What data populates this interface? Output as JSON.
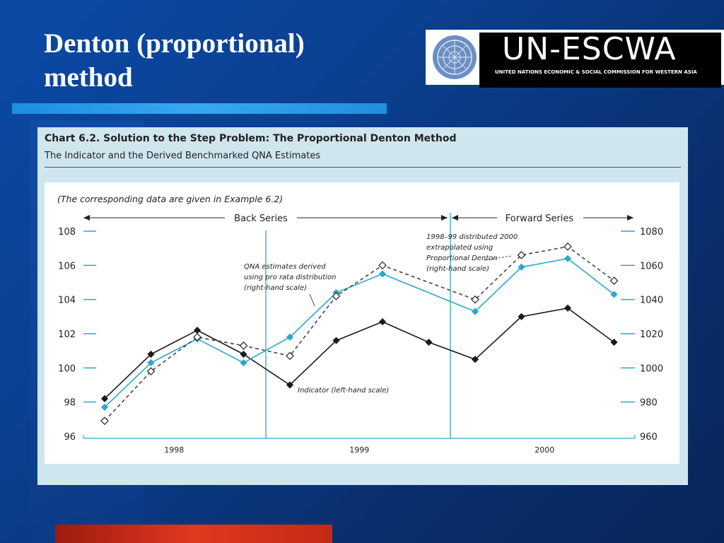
{
  "slide": {
    "title_line1": "Denton (proportional)",
    "title_line2": "method"
  },
  "logo": {
    "name": "UN-ESCWA",
    "subtitle": "UNITED NATIONS ECONOMIC & SOCIAL COMMISSION FOR WESTERN ASIA"
  },
  "colors": {
    "background": "#0b3f8f",
    "title_bar": "#2b9be6",
    "bottom_bar": "#d0321a",
    "panel": "#cfe6ef",
    "series_indicator": "#1a1a1a",
    "series_prorata": "#2aa8cc",
    "series_denton": "#444444"
  },
  "chart_data": {
    "type": "line",
    "title": "Chart 6.2.  Solution to the Step Problem: The Proportional Denton Method",
    "subtitle": "The Indicator and the Derived Benchmarked QNA Estimates",
    "note": "(The corresponding data are given in Example 6.2)",
    "back_series_label": "Back Series",
    "forward_series_label": "Forward Series",
    "years": [
      "1998",
      "1999",
      "2000"
    ],
    "quarters_per_year": 4,
    "left_axis": {
      "ticks": [
        "108",
        "106",
        "104",
        "102",
        "100",
        "98",
        "96"
      ],
      "ylim": [
        96,
        108
      ]
    },
    "right_axis": {
      "ticks": [
        "1080",
        "1060",
        "1040",
        "1020",
        "1000",
        "980",
        "960"
      ],
      "ylim": [
        960,
        1080
      ]
    },
    "series": [
      {
        "name": "Indicator (left-hand scale)",
        "axis": "left",
        "values": [
          98.2,
          100.8,
          102.2,
          100.8,
          99.0,
          101.6,
          102.7,
          101.5,
          100.5,
          103.0,
          103.5,
          101.5
        ]
      },
      {
        "name": "QNA estimates derived using pro rata distribution (right-hand scale)",
        "axis": "right",
        "values": [
          977,
          1003,
          1017,
          1003,
          1018,
          1044,
          1055,
          null,
          1033,
          1059,
          1064,
          1043
        ]
      },
      {
        "name": "1998–99 distributed 2000 extrapolated using Proportional Denton (right-hand scale)",
        "axis": "right",
        "values": [
          969,
          998,
          1018,
          1013,
          1007,
          1042,
          1060,
          null,
          1040,
          1066,
          1071,
          1051
        ]
      }
    ],
    "annotations": {
      "prorata": [
        "QNA estimates derived",
        "using pro rata distribution",
        "(right-hand scale)"
      ],
      "denton": [
        "1998–99 distributed 2000",
        "extrapolated using",
        "Proportional Denton",
        "(right-hand scale)"
      ],
      "indicator": "Indicator (left-hand scale)"
    }
  }
}
